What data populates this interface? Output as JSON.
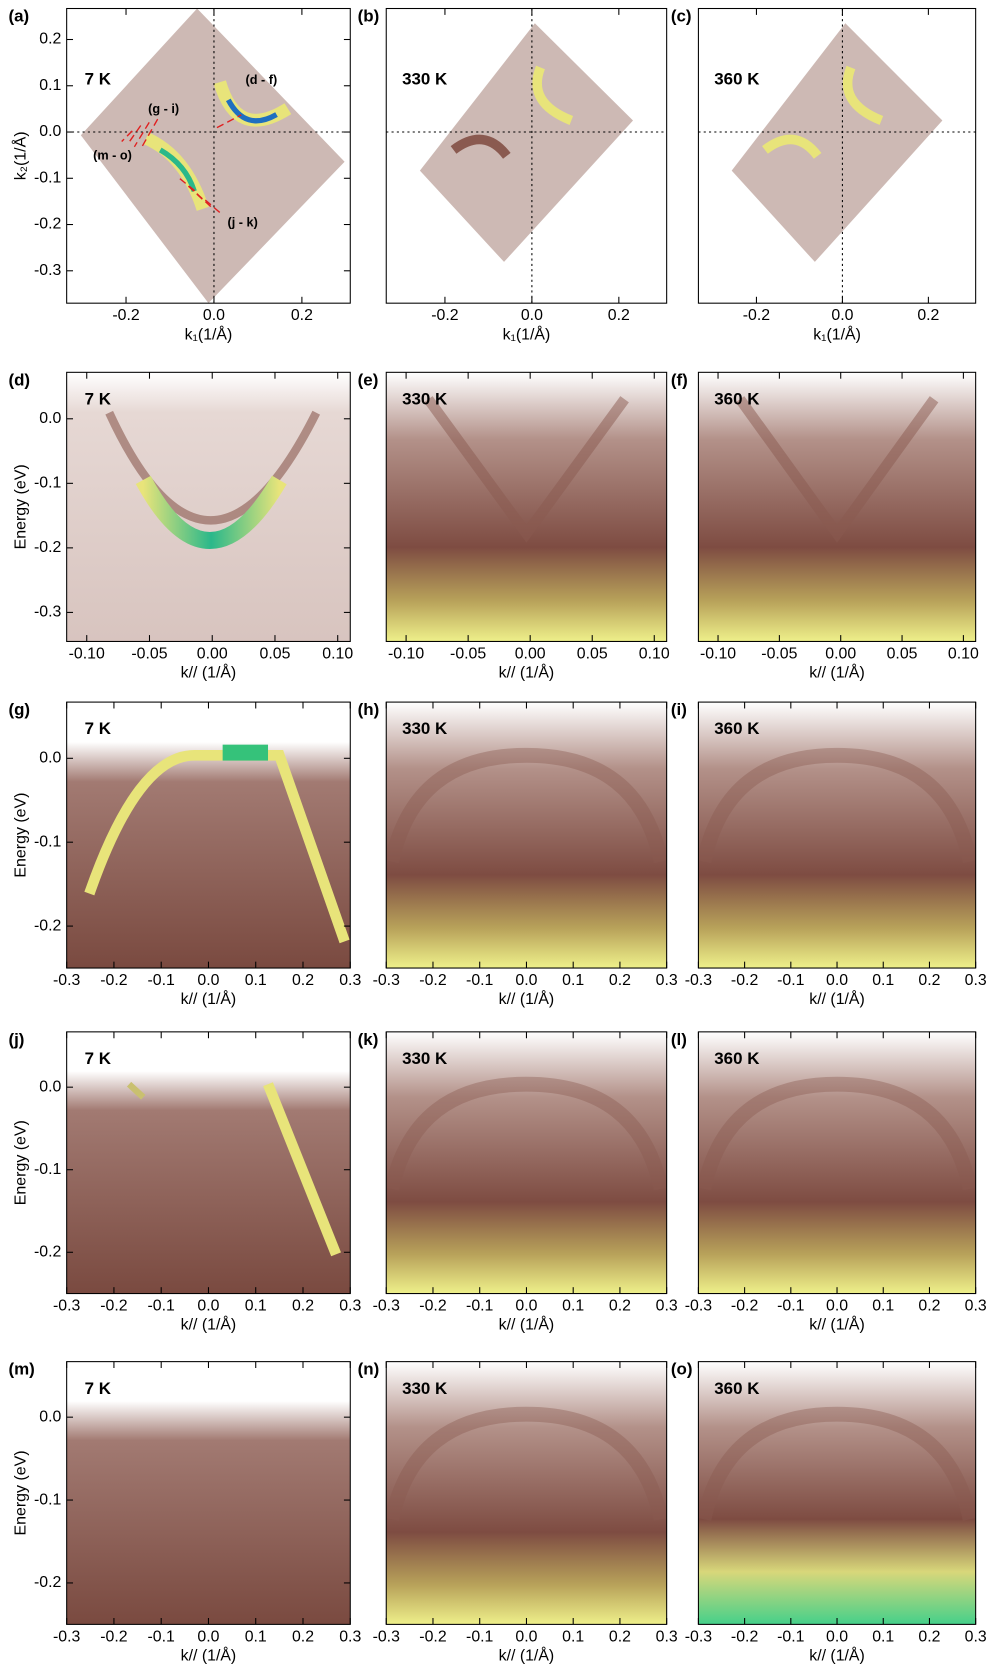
{
  "chart_data": [
    {
      "type": "heatmap",
      "panel": "(a)",
      "label": "7 K",
      "annotations": [
        "(g - i)",
        "(d - f)",
        "(m - o)",
        "(j - k)"
      ],
      "xlabel": "k₁(1/Å)",
      "ylabel": "k₂(1/Å)",
      "xlim": [
        -0.335,
        0.31
      ],
      "ylim": [
        -0.37,
        0.267
      ],
      "xticks": [
        -0.2,
        {
          "value": 0,
          "label": "0.0"
        },
        0.2
      ],
      "yticks": [
        0.2,
        0.1,
        {
          "value": 0,
          "label": "0.0"
        },
        -0.1,
        -0.2,
        -0.3
      ]
    },
    {
      "type": "heatmap",
      "panel": "(b)",
      "label": "330 K",
      "xlabel": "k₁(1/Å)",
      "xlim": [
        -0.335,
        0.31
      ],
      "ylim": [
        -0.37,
        0.267
      ],
      "xticks": [
        -0.2,
        {
          "value": 0,
          "label": "0.0"
        },
        0.2
      ]
    },
    {
      "type": "heatmap",
      "panel": "(c)",
      "label": "360 K",
      "xlabel": "k₁(1/Å)",
      "xlim": [
        -0.335,
        0.31
      ],
      "ylim": [
        -0.37,
        0.267
      ],
      "xticks": [
        -0.2,
        {
          "value": 0,
          "label": "0.0"
        },
        0.2
      ]
    },
    {
      "type": "heatmap",
      "panel": "(d)",
      "label": "7 K",
      "xlabel": "k// (1/Å)",
      "ylabel": "Energy (eV)",
      "xlim": [
        -0.116,
        0.11
      ],
      "ylim": [
        -0.345,
        0.072
      ],
      "xticks": [
        {
          "value": -0.1,
          "label": "-0.10"
        },
        -0.05,
        {
          "value": 0,
          "label": "0.00"
        },
        0.05,
        {
          "value": 0.1,
          "label": "0.10"
        }
      ],
      "yticks": [
        {
          "value": 0,
          "label": "0.0"
        },
        -0.1,
        -0.2,
        -0.3
      ]
    },
    {
      "type": "heatmap",
      "panel": "(e)",
      "label": "330 K",
      "xlabel": "k// (1/Å)",
      "xlim": [
        -0.116,
        0.11
      ],
      "ylim": [
        -0.345,
        0.072
      ],
      "xticks": [
        {
          "value": -0.1,
          "label": "-0.10"
        },
        -0.05,
        {
          "value": 0,
          "label": "0.00"
        },
        0.05,
        {
          "value": 0.1,
          "label": "0.10"
        }
      ]
    },
    {
      "type": "heatmap",
      "panel": "(f)",
      "label": "360 K",
      "xlabel": "k// (1/Å)",
      "xlim": [
        -0.116,
        0.11
      ],
      "ylim": [
        -0.345,
        0.072
      ],
      "xticks": [
        {
          "value": -0.1,
          "label": "-0.10"
        },
        -0.05,
        {
          "value": 0,
          "label": "0.00"
        },
        0.05,
        {
          "value": 0.1,
          "label": "0.10"
        }
      ]
    },
    {
      "type": "heatmap",
      "panel": "(g)",
      "label": "7 K",
      "xlabel": "k// (1/Å)",
      "ylabel": "Energy (eV)",
      "xlim": [
        -0.3,
        0.3
      ],
      "ylim": [
        -0.25,
        0.067
      ],
      "xticks": [
        -0.3,
        -0.2,
        -0.1,
        {
          "value": 0,
          "label": "0.0"
        },
        0.1,
        0.2,
        0.3
      ],
      "yticks": [
        {
          "value": 0,
          "label": "0.0"
        },
        -0.1,
        -0.2
      ]
    },
    {
      "type": "heatmap",
      "panel": "(h)",
      "label": "330 K",
      "xlabel": "k// (1/Å)",
      "xlim": [
        -0.3,
        0.3
      ],
      "ylim": [
        -0.25,
        0.067
      ],
      "xticks": [
        -0.3,
        -0.2,
        -0.1,
        {
          "value": 0,
          "label": "0.0"
        },
        0.1,
        0.2,
        0.3
      ]
    },
    {
      "type": "heatmap",
      "panel": "(i)",
      "label": "360 K",
      "xlabel": "k// (1/Å)",
      "xlim": [
        -0.3,
        0.3
      ],
      "ylim": [
        -0.25,
        0.067
      ],
      "xticks": [
        -0.3,
        -0.2,
        -0.1,
        {
          "value": 0,
          "label": "0.0"
        },
        0.1,
        0.2,
        0.3
      ]
    },
    {
      "type": "heatmap",
      "panel": "(j)",
      "label": "7 K",
      "xlabel": "k// (1/Å)",
      "ylabel": "Energy (eV)",
      "xlim": [
        -0.3,
        0.3
      ],
      "ylim": [
        -0.25,
        0.067
      ],
      "xticks": [
        -0.3,
        -0.2,
        -0.1,
        {
          "value": 0,
          "label": "0.0"
        },
        0.1,
        0.2,
        0.3
      ],
      "yticks": [
        {
          "value": 0,
          "label": "0.0"
        },
        -0.1,
        -0.2
      ]
    },
    {
      "type": "heatmap",
      "panel": "(k)",
      "label": "330 K",
      "xlabel": "k// (1/Å)",
      "xlim": [
        -0.3,
        0.3
      ],
      "ylim": [
        -0.25,
        0.067
      ],
      "xticks": [
        -0.3,
        -0.2,
        -0.1,
        {
          "value": 0,
          "label": "0.0"
        },
        0.1,
        0.2,
        0.3
      ]
    },
    {
      "type": "heatmap",
      "panel": "(l)",
      "label": "360 K",
      "xlabel": "k// (1/Å)",
      "xlim": [
        -0.3,
        0.3
      ],
      "ylim": [
        -0.25,
        0.067
      ],
      "xticks": [
        -0.3,
        -0.2,
        -0.1,
        {
          "value": 0,
          "label": "0.0"
        },
        0.1,
        0.2,
        0.3
      ]
    },
    {
      "type": "heatmap",
      "panel": "(m)",
      "label": "7 K",
      "xlabel": "k// (1/Å)",
      "ylabel": "Energy (eV)",
      "xlim": [
        -0.3,
        0.3
      ],
      "ylim": [
        -0.25,
        0.067
      ],
      "xticks": [
        -0.3,
        -0.2,
        -0.1,
        {
          "value": 0,
          "label": "0.0"
        },
        0.1,
        0.2,
        0.3
      ],
      "yticks": [
        {
          "value": 0,
          "label": "0.0"
        },
        -0.1,
        -0.2
      ]
    },
    {
      "type": "heatmap",
      "panel": "(n)",
      "label": "330 K",
      "xlabel": "k// (1/Å)",
      "xlim": [
        -0.3,
        0.3
      ],
      "ylim": [
        -0.25,
        0.067
      ],
      "xticks": [
        -0.3,
        -0.2,
        -0.1,
        {
          "value": 0,
          "label": "0.0"
        },
        0.1,
        0.2,
        0.3
      ]
    },
    {
      "type": "heatmap",
      "panel": "(o)",
      "label": "360 K",
      "xlabel": "k// (1/Å)",
      "xlim": [
        -0.3,
        0.3
      ],
      "ylim": [
        -0.25,
        0.067
      ],
      "xticks": [
        -0.3,
        -0.2,
        -0.1,
        {
          "value": 0,
          "label": "0.0"
        },
        0.1,
        0.2,
        0.3
      ]
    }
  ]
}
